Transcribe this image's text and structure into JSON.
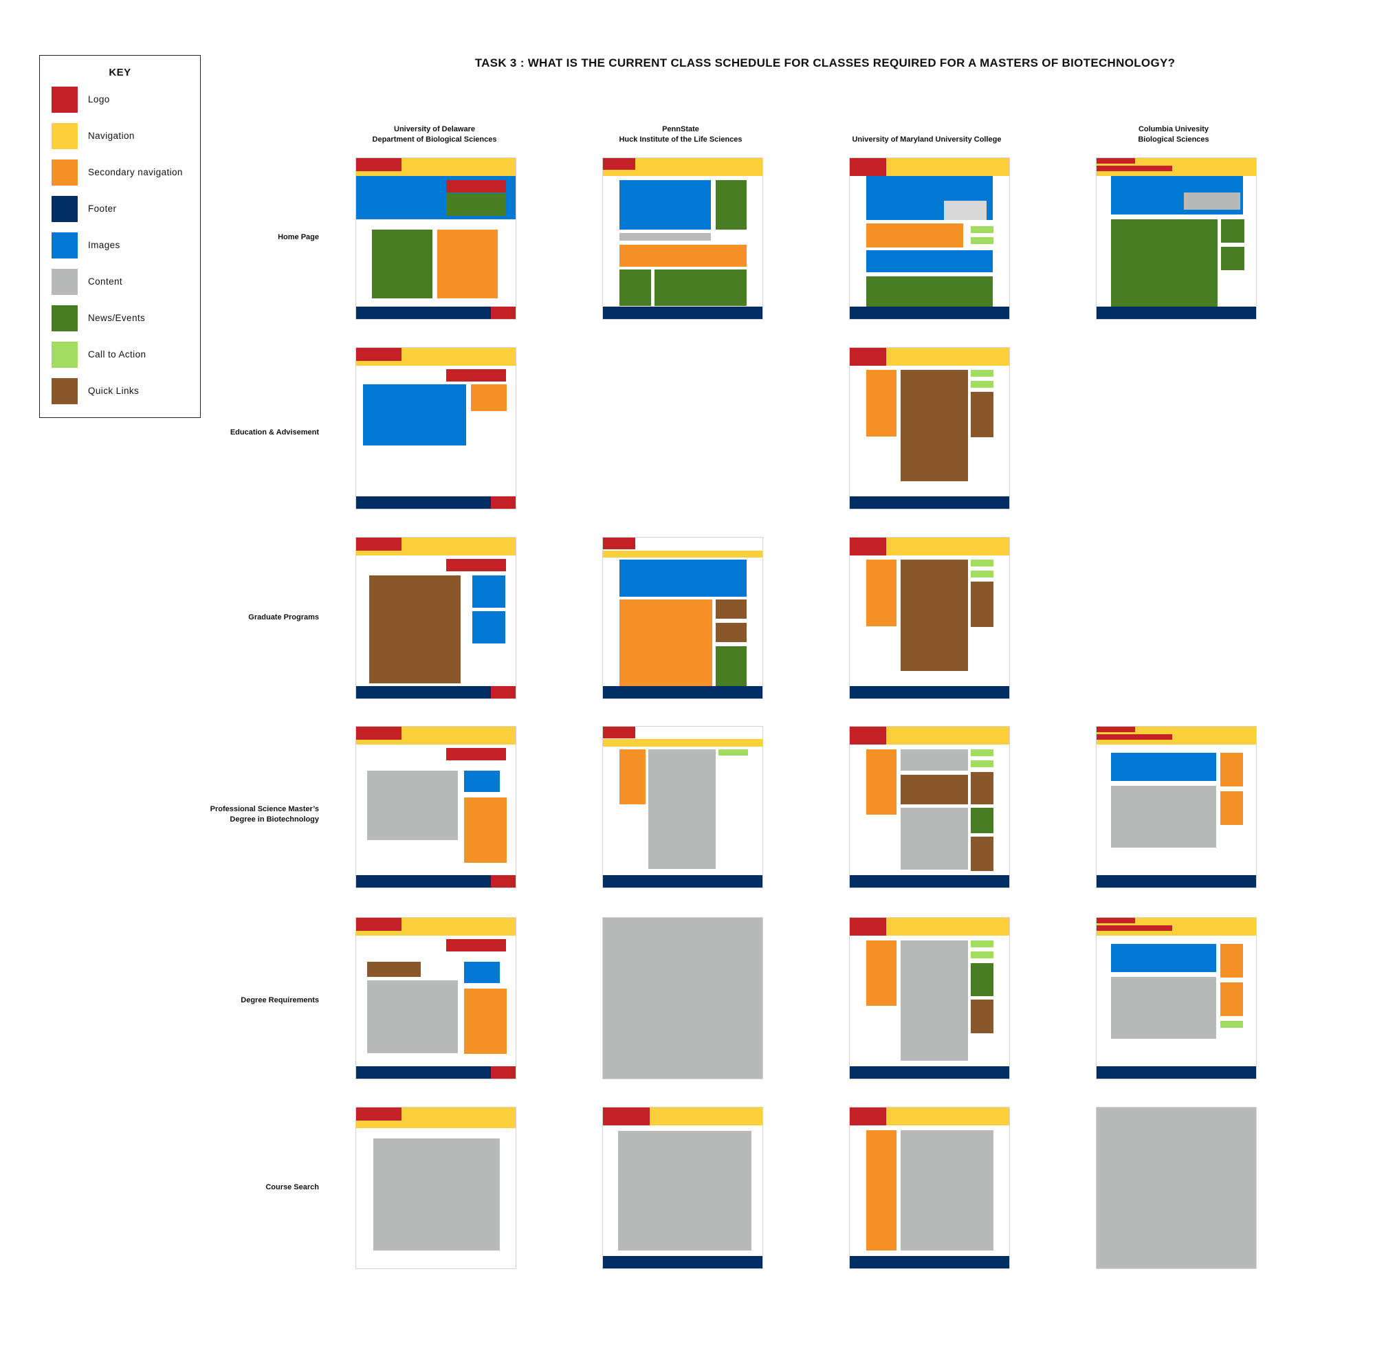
{
  "title": "TASK 3 : WHAT IS THE CURRENT CLASS  SCHEDULE  FOR CLASSES REQUIRED FOR A MASTERS OF BIOTECHNOLOGY?",
  "colors": {
    "logo": "#C42127",
    "nav": "#FCD03A",
    "secondary": "#F59127",
    "footer": "#002D62",
    "images": "#0078D4",
    "content": "#B7BAB8",
    "news": "#487D23",
    "cta": "#A2DD5F",
    "quick": "#8A572A",
    "light": "#D7D7D7"
  },
  "key": {
    "title": "KEY",
    "items": [
      {
        "type": "logo",
        "label": "Logo"
      },
      {
        "type": "nav",
        "label": "Navigation"
      },
      {
        "type": "secondary",
        "label": "Secondary navigation"
      },
      {
        "type": "footer",
        "label": "Footer"
      },
      {
        "type": "images",
        "label": "Images"
      },
      {
        "type": "content",
        "label": "Content"
      },
      {
        "type": "news",
        "label": "News/Events"
      },
      {
        "type": "cta",
        "label": "Call to Action"
      },
      {
        "type": "quick",
        "label": "Quick Links"
      }
    ]
  },
  "columns": [
    {
      "line1": "University of Delaware",
      "line2": "Department of Biological Sciences"
    },
    {
      "line1": "PennState",
      "line2": "Huck Institute of the Life Sciences"
    },
    {
      "line1": "",
      "line2": "University of Maryland University College"
    },
    {
      "line1": "Columbia Univesity",
      "line2": "Biological Sciences"
    }
  ],
  "rows": [
    {
      "line1": "",
      "line2": "Home Page"
    },
    {
      "line1": "",
      "line2": "Education & Advisement"
    },
    {
      "line1": "",
      "line2": "Graduate Programs"
    },
    {
      "line1": "Professional Science Master’s",
      "line2": "Degree in Biotechnology"
    },
    {
      "line1": "",
      "line2": "Degree Requirements"
    },
    {
      "line1": "",
      "line2": "Course Search"
    }
  ]
}
